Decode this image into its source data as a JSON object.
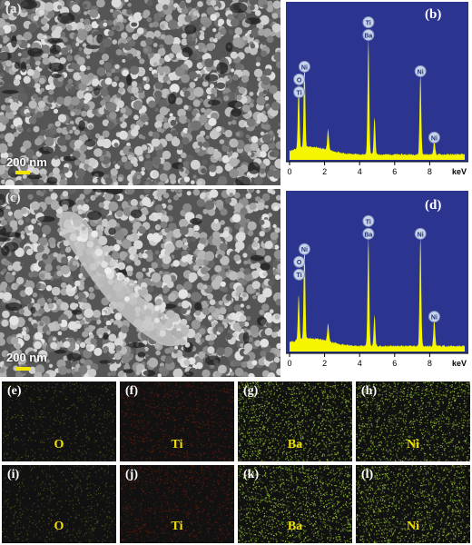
{
  "figure": {
    "sem_panels": [
      {
        "label": "(a)",
        "scale": "200 nm"
      },
      {
        "label": "(c)",
        "scale": "200 nm"
      }
    ],
    "eds_panels": [
      {
        "label": "(b)",
        "peaks": [
          "Ni",
          "O",
          "Ti",
          "Ti",
          "Ba",
          "Ni",
          "Ni"
        ]
      },
      {
        "label": "(d)",
        "peaks": [
          "Ni",
          "O",
          "Ti",
          "Ti",
          "Ba",
          "Ni",
          "Ni"
        ]
      }
    ],
    "eds_axis": {
      "ticks": [
        "0",
        "2",
        "4",
        "6",
        "8"
      ],
      "unit": "keV"
    },
    "maps": [
      {
        "label": "(e)",
        "element": "O"
      },
      {
        "label": "(f)",
        "element": "Ti"
      },
      {
        "label": "(g)",
        "element": "Ba"
      },
      {
        "label": "(h)",
        "element": "Ni"
      },
      {
        "label": "(i)",
        "element": "O"
      },
      {
        "label": "(j)",
        "element": "Ti"
      },
      {
        "label": "(k)",
        "element": "Ba"
      },
      {
        "label": "(l)",
        "element": "Ni"
      }
    ],
    "colors": {
      "eds_background": "#2b3590",
      "spectrum": "#f5f500",
      "map_O": "#2a2a12",
      "map_Ti": "#3a1208",
      "map_Ba": "#9acd32",
      "map_Ni": "#9acd32"
    }
  },
  "chart_data": [
    {
      "type": "line",
      "xlabel": "keV",
      "xlim": [
        0,
        10
      ],
      "x_ticks": [
        0,
        2,
        4,
        6,
        8
      ],
      "peaks": [
        {
          "label": "O",
          "x": 0.52,
          "y": 0.45
        },
        {
          "label": "Ni",
          "x": 0.85,
          "y": 0.57
        },
        {
          "label": "Ti/Ba",
          "x": 4.5,
          "y": 0.78
        },
        {
          "label": "Ba",
          "x": 4.85,
          "y": 0.25
        },
        {
          "label": "Ni",
          "x": 7.47,
          "y": 0.54
        },
        {
          "label": "Ni",
          "x": 8.26,
          "y": 0.1
        },
        {
          "label": "",
          "x": 2.2,
          "y": 0.14
        }
      ]
    },
    {
      "type": "line",
      "xlabel": "keV",
      "xlim": [
        0,
        10
      ],
      "x_ticks": [
        0,
        2,
        4,
        6,
        8
      ],
      "peaks": [
        {
          "label": "O",
          "x": 0.52,
          "y": 0.3
        },
        {
          "label": "Ni",
          "x": 0.85,
          "y": 0.62
        },
        {
          "label": "Ti/Ba",
          "x": 4.5,
          "y": 0.72
        },
        {
          "label": "Ba",
          "x": 4.85,
          "y": 0.2
        },
        {
          "label": "Ni",
          "x": 7.47,
          "y": 0.72
        },
        {
          "label": "Ni",
          "x": 8.26,
          "y": 0.18
        },
        {
          "label": "",
          "x": 2.2,
          "y": 0.12
        }
      ]
    }
  ]
}
